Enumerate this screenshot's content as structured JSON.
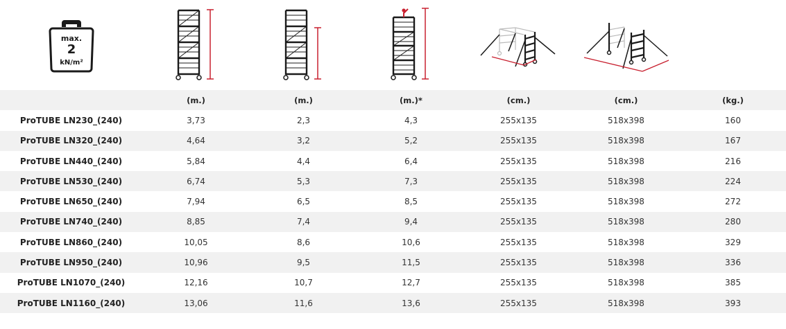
{
  "badge": {
    "line1": "max.",
    "line2": "2",
    "line3": "kN/m²"
  },
  "icons": [
    {
      "name": "weight-load-icon"
    },
    {
      "name": "scaffold-total-height-icon"
    },
    {
      "name": "scaffold-platform-height-icon"
    },
    {
      "name": "scaffold-working-height-icon"
    },
    {
      "name": "scaffold-base-size-icon"
    },
    {
      "name": "scaffold-outrigger-footprint-icon"
    }
  ],
  "colors": {
    "accent": "#c8202f",
    "frame": "#1a1a1a",
    "stripe": "#f1f1f1"
  },
  "table": {
    "headers": [
      "",
      "(m.)",
      "(m.)",
      "(m.)*",
      "(cm.)",
      "(cm.)",
      "(kg.)"
    ],
    "rows": [
      [
        "ProTUBE LN230_(240)",
        "3,73",
        "2,3",
        "4,3",
        "255x135",
        "518x398",
        "160"
      ],
      [
        "ProTUBE LN320_(240)",
        "4,64",
        "3,2",
        "5,2",
        "255x135",
        "518x398",
        "167"
      ],
      [
        "ProTUBE LN440_(240)",
        "5,84",
        "4,4",
        "6,4",
        "255x135",
        "518x398",
        "216"
      ],
      [
        "ProTUBE LN530_(240)",
        "6,74",
        "5,3",
        "7,3",
        "255x135",
        "518x398",
        "224"
      ],
      [
        "ProTUBE LN650_(240)",
        "7,94",
        "6,5",
        "8,5",
        "255x135",
        "518x398",
        "272"
      ],
      [
        "ProTUBE LN740_(240)",
        "8,85",
        "7,4",
        "9,4",
        "255x135",
        "518x398",
        "280"
      ],
      [
        "ProTUBE LN860_(240)",
        "10,05",
        "8,6",
        "10,6",
        "255x135",
        "518x398",
        "329"
      ],
      [
        "ProTUBE LN950_(240)",
        "10,96",
        "9,5",
        "11,5",
        "255x135",
        "518x398",
        "336"
      ],
      [
        "ProTUBE LN1070_(240)",
        "12,16",
        "10,7",
        "12,7",
        "255x135",
        "518x398",
        "385"
      ],
      [
        "ProTUBE LN1160_(240)",
        "13,06",
        "11,6",
        "13,6",
        "255x135",
        "518x398",
        "393"
      ]
    ]
  }
}
